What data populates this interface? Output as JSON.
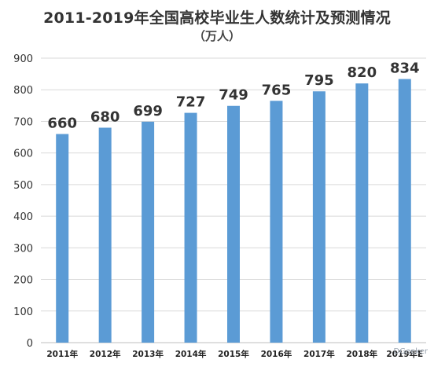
{
  "chart_data": {
    "type": "bar",
    "title": "2011-2019年全国高校毕业生人数统计及预测情况",
    "subtitle": "（万人）",
    "xlabel": "",
    "ylabel": "",
    "categories": [
      "2011年",
      "2012年",
      "2013年",
      "2014年",
      "2015年",
      "2016年",
      "2017年",
      "2018年",
      "2019年E"
    ],
    "values": [
      660,
      680,
      699,
      727,
      749,
      765,
      795,
      820,
      834
    ],
    "ylim": [
      0,
      900
    ],
    "yticks": [
      0,
      100,
      200,
      300,
      400,
      500,
      600,
      700,
      800,
      900
    ],
    "grid": true,
    "legend": "none",
    "bar_color": "#5b9bd5"
  },
  "watermark": "DGeeker"
}
